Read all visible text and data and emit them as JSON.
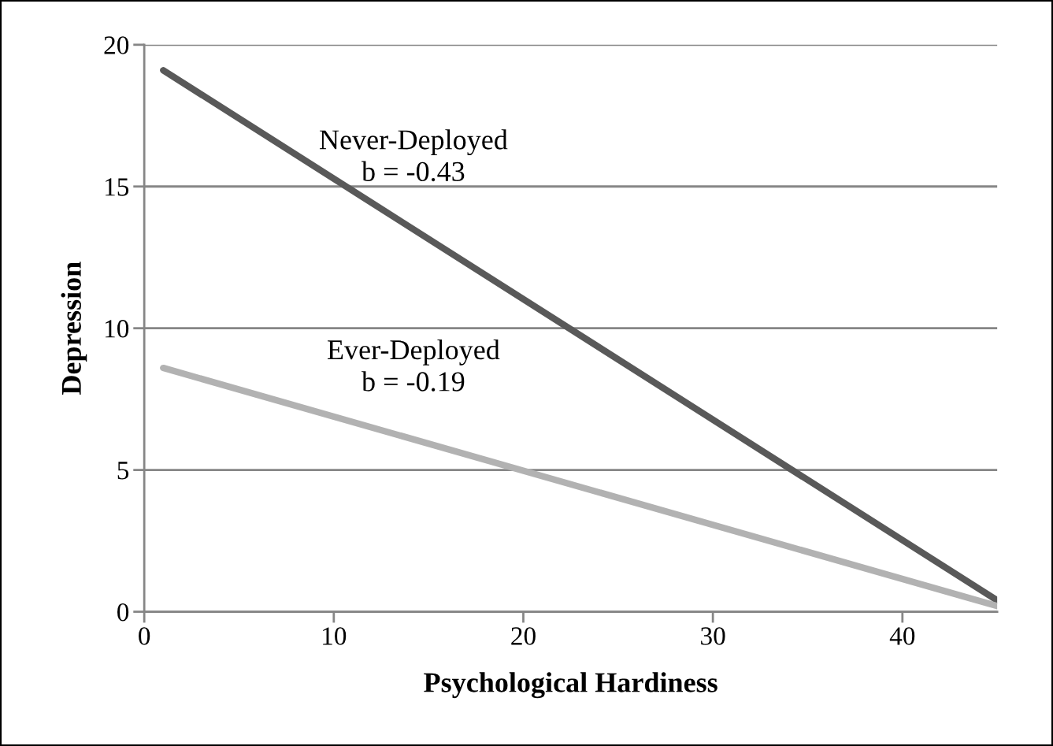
{
  "chart_data": {
    "type": "line",
    "xlabel": "Psychological Hardiness",
    "ylabel": "Depression",
    "xlim": [
      0,
      45
    ],
    "xticks": [
      0,
      10,
      20,
      30,
      40
    ],
    "ylim": [
      0,
      20
    ],
    "yticks": [
      0,
      5,
      10,
      15,
      20
    ],
    "grid": "y",
    "x": [
      1,
      45
    ],
    "series": [
      {
        "name": "Never-Deployed",
        "color": "#595959",
        "values": [
          19.1,
          0.4
        ]
      },
      {
        "name": "Ever-Deployed",
        "color": "#b2b2b2",
        "values": [
          8.6,
          0.2
        ]
      }
    ],
    "annotations": [
      "b = -0.43",
      "b = -0.19"
    ]
  }
}
